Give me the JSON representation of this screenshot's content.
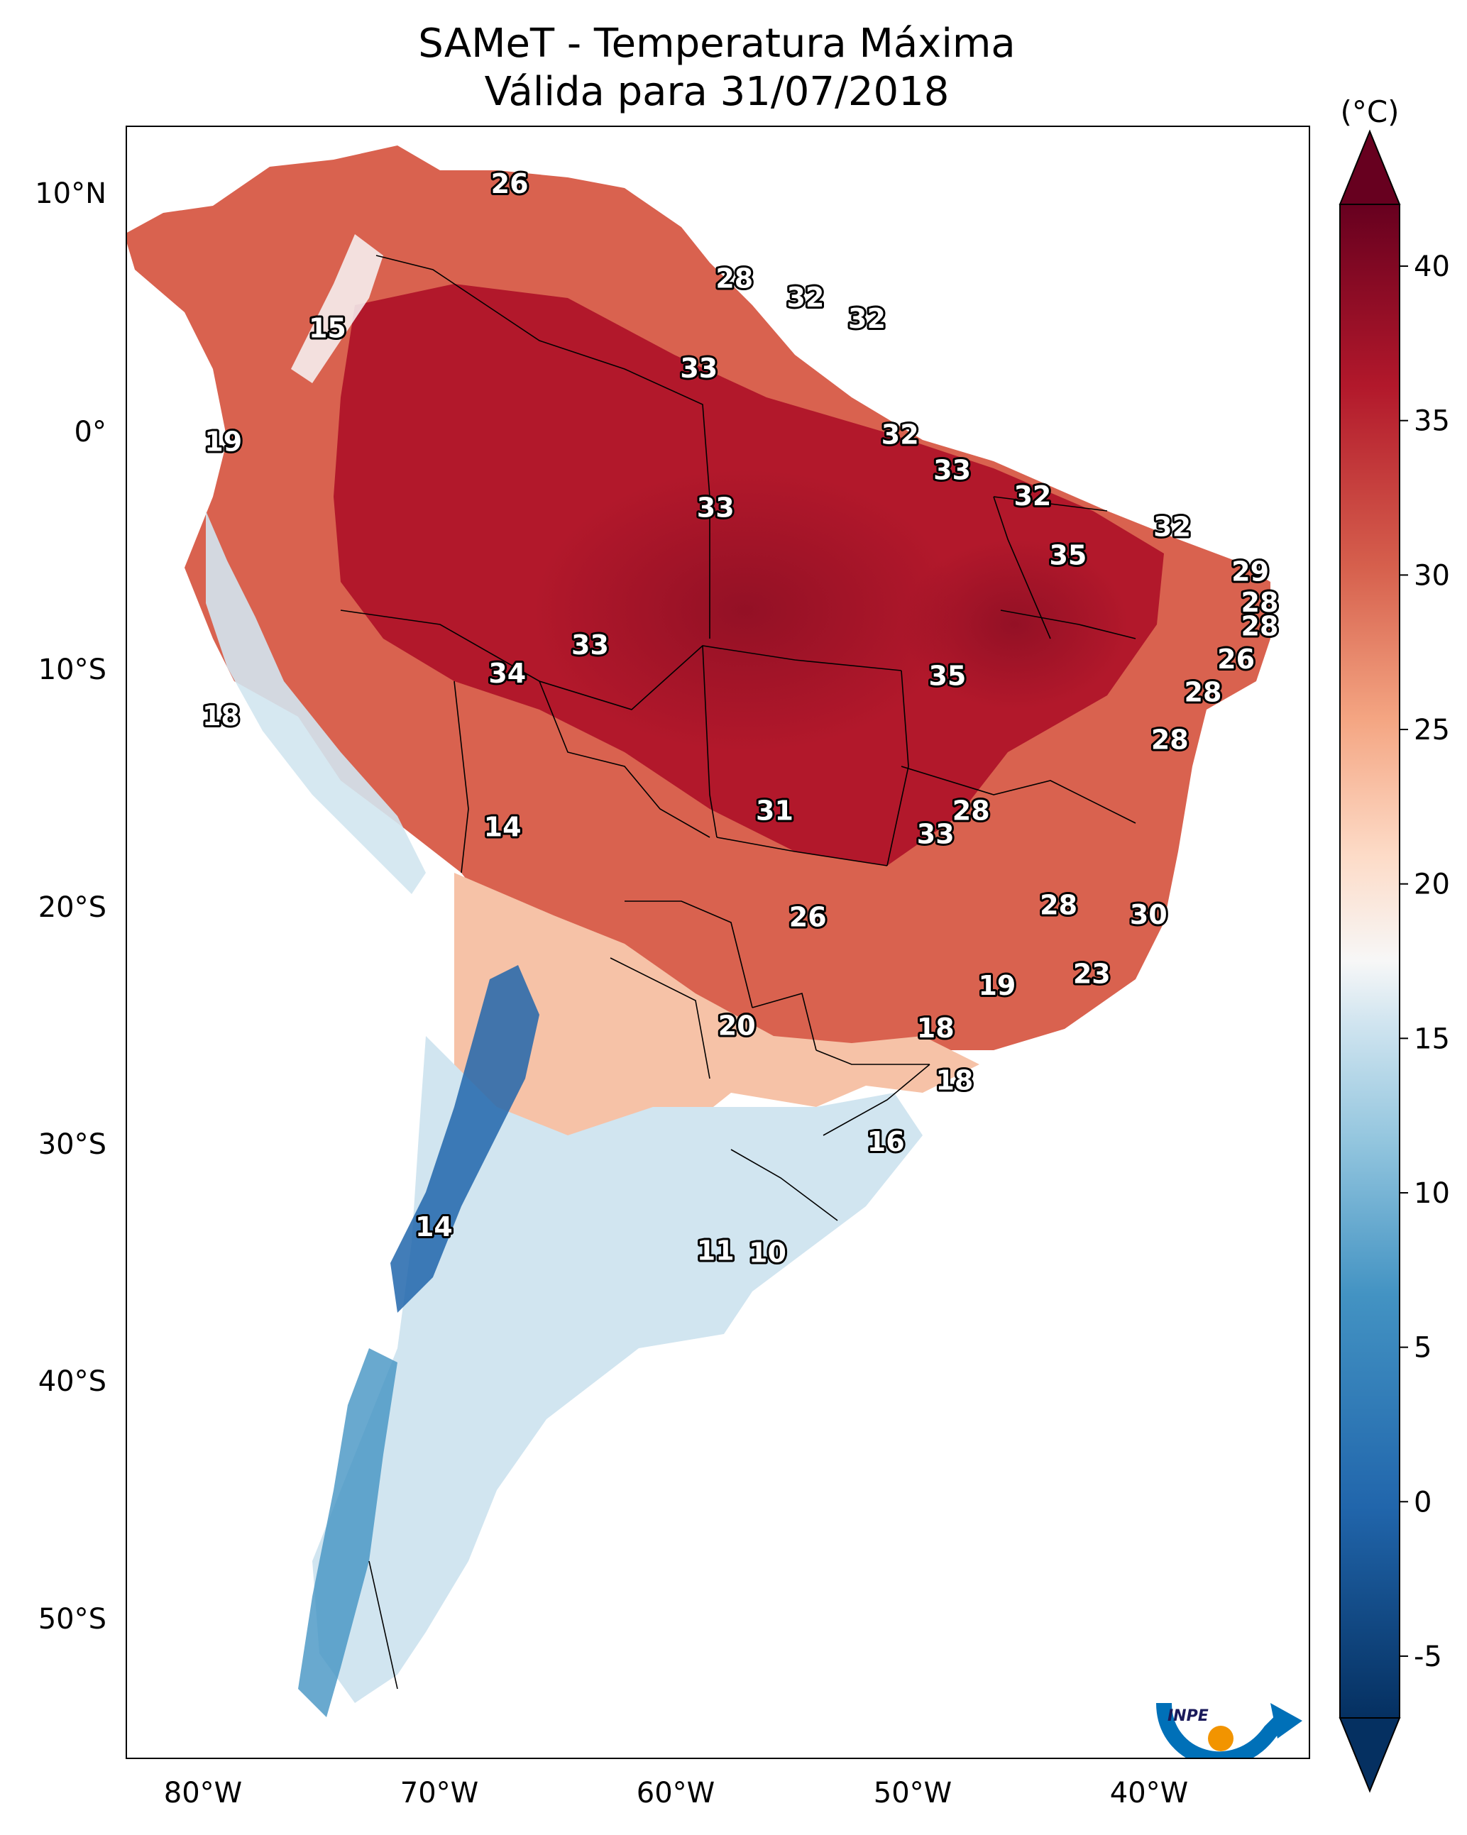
{
  "title_line1": "SAMeT - Temperatura Máxima",
  "title_line2": "Válida para 31/07/2018",
  "colorbar": {
    "unit": "(°C)",
    "ticks": [
      "40",
      "35",
      "30",
      "25",
      "20",
      "15",
      "10",
      "5",
      "0",
      "-5"
    ],
    "vmin": -7,
    "vmax": 42,
    "colors": {
      "cold": "#053061",
      "cool": "#4393c3",
      "neutral": "#f7f7f7",
      "warm": "#d6604d",
      "hot": "#67001f"
    }
  },
  "axes": {
    "lat_ticks": [
      "10°N",
      "0°",
      "10°S",
      "20°S",
      "30°S",
      "40°S",
      "50°S"
    ],
    "lon_ticks": [
      "80°W",
      "70°W",
      "60°W",
      "50°W",
      "40°W"
    ],
    "lon_range": [
      -83,
      -33
    ],
    "lat_range": [
      -56,
      13
    ]
  },
  "logo_text": "INPE",
  "map_labels": [
    {
      "text": "26",
      "lon": -66.8,
      "lat": 10.6
    },
    {
      "text": "15",
      "lon": -74.5,
      "lat": 4.5
    },
    {
      "text": "19",
      "lon": -78.9,
      "lat": -0.3
    },
    {
      "text": "28",
      "lon": -57.3,
      "lat": 6.6
    },
    {
      "text": "32",
      "lon": -54.3,
      "lat": 5.8
    },
    {
      "text": "32",
      "lon": -51.7,
      "lat": 4.9
    },
    {
      "text": "33",
      "lon": -58.8,
      "lat": 2.8
    },
    {
      "text": "33",
      "lon": -58.1,
      "lat": -3.1
    },
    {
      "text": "32",
      "lon": -50.3,
      "lat": 0.0
    },
    {
      "text": "33",
      "lon": -48.1,
      "lat": -1.5
    },
    {
      "text": "32",
      "lon": -44.7,
      "lat": -2.6
    },
    {
      "text": "32",
      "lon": -38.8,
      "lat": -3.9
    },
    {
      "text": "35",
      "lon": -43.2,
      "lat": -5.1
    },
    {
      "text": "29",
      "lon": -35.5,
      "lat": -5.8
    },
    {
      "text": "28",
      "lon": -35.1,
      "lat": -7.1
    },
    {
      "text": "28",
      "lon": -35.1,
      "lat": -8.1
    },
    {
      "text": "33",
      "lon": -63.4,
      "lat": -8.9
    },
    {
      "text": "34",
      "lon": -66.9,
      "lat": -10.1
    },
    {
      "text": "35",
      "lon": -48.3,
      "lat": -10.2
    },
    {
      "text": "26",
      "lon": -36.1,
      "lat": -9.5
    },
    {
      "text": "28",
      "lon": -37.5,
      "lat": -10.9
    },
    {
      "text": "28",
      "lon": -38.9,
      "lat": -12.9
    },
    {
      "text": "18",
      "lon": -79.0,
      "lat": -11.9
    },
    {
      "text": "31",
      "lon": -55.6,
      "lat": -15.9
    },
    {
      "text": "28",
      "lon": -47.3,
      "lat": -15.9
    },
    {
      "text": "33",
      "lon": -48.8,
      "lat": -16.9
    },
    {
      "text": "14",
      "lon": -67.1,
      "lat": -16.6
    },
    {
      "text": "26",
      "lon": -54.2,
      "lat": -20.4
    },
    {
      "text": "28",
      "lon": -43.6,
      "lat": -19.9
    },
    {
      "text": "30",
      "lon": -39.8,
      "lat": -20.3
    },
    {
      "text": "23",
      "lon": -42.2,
      "lat": -22.8
    },
    {
      "text": "19",
      "lon": -46.2,
      "lat": -23.3
    },
    {
      "text": "20",
      "lon": -57.2,
      "lat": -25.0
    },
    {
      "text": "18",
      "lon": -48.8,
      "lat": -25.1
    },
    {
      "text": "18",
      "lon": -48.0,
      "lat": -27.3
    },
    {
      "text": "16",
      "lon": -50.9,
      "lat": -29.9
    },
    {
      "text": "14",
      "lon": -70.0,
      "lat": -33.5
    },
    {
      "text": "11",
      "lon": -58.1,
      "lat": -34.5
    },
    {
      "text": "10",
      "lon": -55.9,
      "lat": -34.6
    }
  ]
}
